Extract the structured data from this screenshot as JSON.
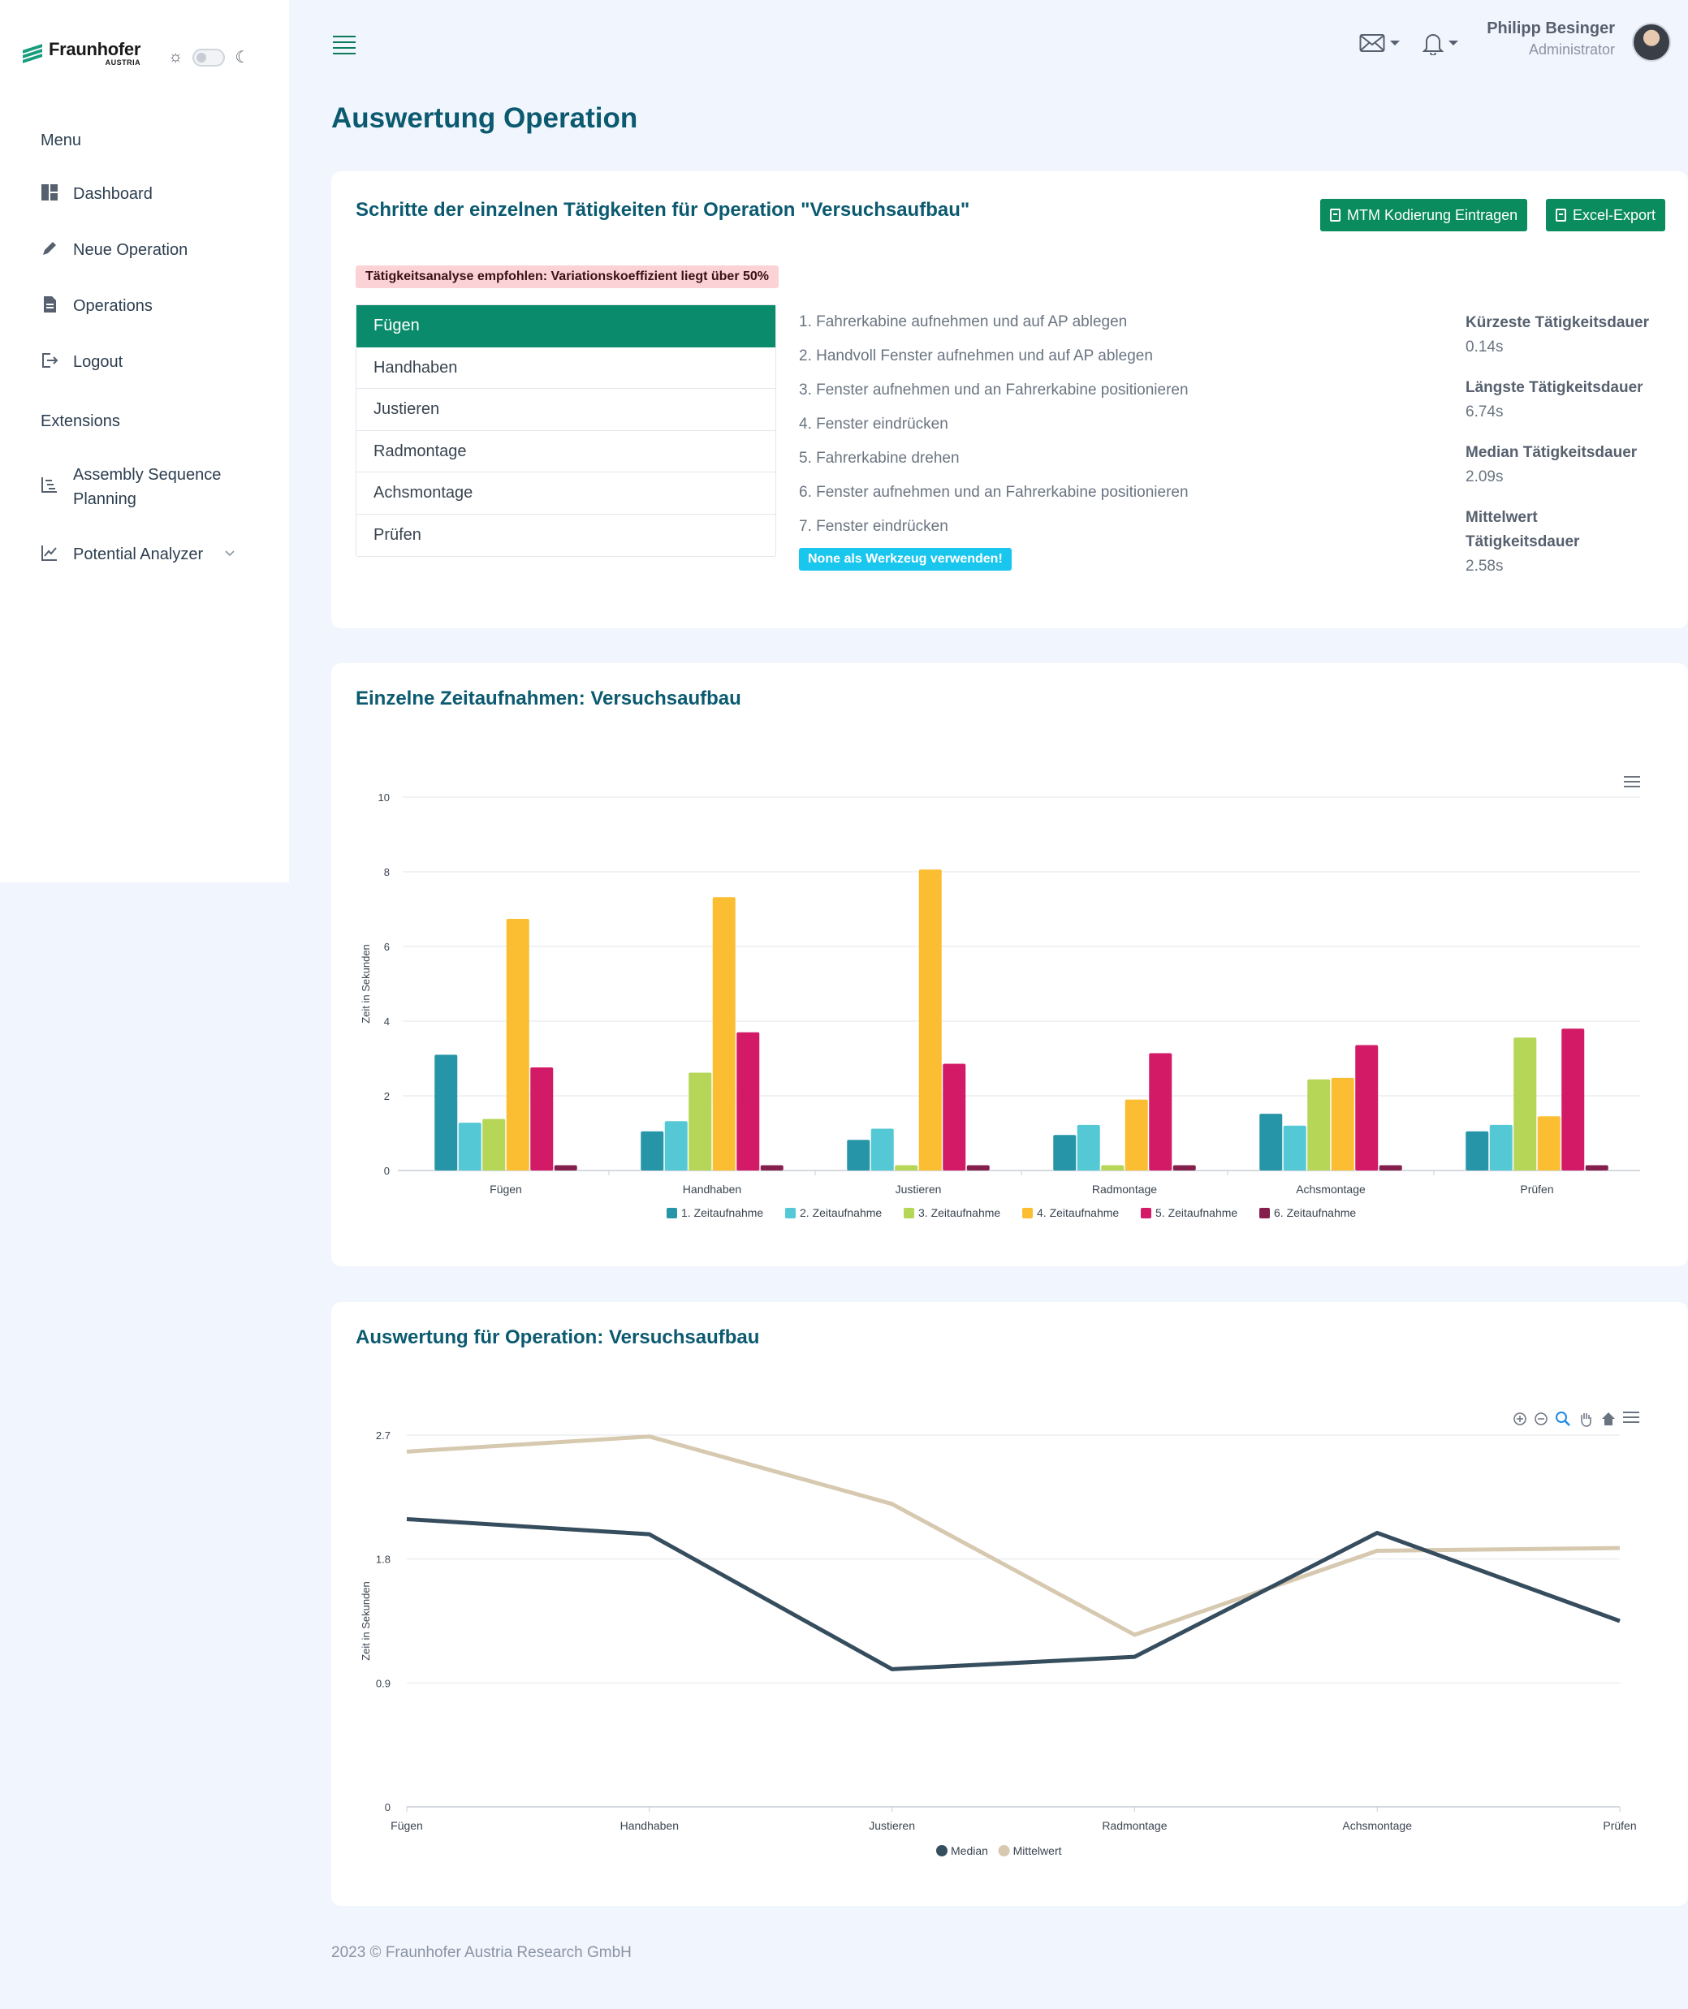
{
  "brand": {
    "name": "Fraunhofer",
    "sub": "AUSTRIA"
  },
  "sidebar": {
    "menu_heading": "Menu",
    "items": [
      {
        "label": "Dashboard",
        "icon": "dashboard-icon"
      },
      {
        "label": "Neue Operation",
        "icon": "pen-icon"
      },
      {
        "label": "Operations",
        "icon": "document-icon"
      },
      {
        "label": "Logout",
        "icon": "logout-icon"
      }
    ],
    "extensions_heading": "Extensions",
    "ext_items": [
      {
        "label": "Assembly Sequence Planning",
        "icon": "sequence-icon"
      },
      {
        "label": "Potential Analyzer",
        "icon": "trend-icon"
      }
    ]
  },
  "user": {
    "name": "Philipp Besinger",
    "role": "Administrator"
  },
  "page_title": "Auswertung Operation",
  "steps_card": {
    "title": "Schritte der einzelnen Tätigkeiten für Operation \"Versuchsaufbau\"",
    "btn_mtm": "MTM Kodierung Eintragen",
    "btn_excel": "Excel-Export",
    "alert": "Tätigkeitsanalyse empfohlen: Variationskoeffizient liegt über 50%",
    "tasks": [
      "Fügen",
      "Handhaben",
      "Justieren",
      "Radmontage",
      "Achsmontage",
      "Prüfen"
    ],
    "steps": [
      "1. Fahrerkabine aufnehmen und auf AP ablegen",
      "2. Handvoll Fenster aufnehmen und auf AP ablegen",
      "3. Fenster aufnehmen und an Fahrerkabine positionieren",
      "4. Fenster eindrücken",
      "5. Fahrerkabine drehen",
      "6. Fenster aufnehmen und an Fahrerkabine positionieren",
      "7. Fenster eindrücken"
    ],
    "tool_badge": "None als Werkzeug verwenden!",
    "stats": [
      {
        "label": "Kürzeste Tätigkeitsdauer",
        "value": "0.14s"
      },
      {
        "label": "Längste Tätigkeitsdauer",
        "value": "6.74s"
      },
      {
        "label": "Median Tätigkeitsdauer",
        "value": "2.09s"
      },
      {
        "label": "Mittelwert Tätigkeitsdauer",
        "value": "2.58s"
      }
    ]
  },
  "bar_card": {
    "title": "Einzelne Zeitaufnahmen: Versuchsaufbau"
  },
  "line_card": {
    "title": "Auswertung für Operation: Versuchsaufbau"
  },
  "footer": "2023 © Fraunhofer Austria Research GmbH",
  "colors": {
    "accent": "#0a8c5e",
    "title": "#0b5a70",
    "badge": "#19c6ee",
    "alert_bg": "#fbd3d6"
  },
  "chart_data": [
    {
      "type": "bar",
      "ylabel": "Zeit in Sekunden",
      "ylim": [
        0,
        10
      ],
      "yticks": [
        0,
        2,
        4,
        6,
        8,
        10
      ],
      "categories": [
        "Fügen",
        "Handhaben",
        "Justieren",
        "Radmontage",
        "Achsmontage",
        "Prüfen"
      ],
      "legend_position": "bottom",
      "series": [
        {
          "name": "1. Zeitaufnahme",
          "color": "#2695a8",
          "values": [
            3.1,
            1.05,
            0.82,
            0.95,
            1.52,
            1.05
          ]
        },
        {
          "name": "2. Zeitaufnahme",
          "color": "#55c8d6",
          "values": [
            1.28,
            1.32,
            1.12,
            1.22,
            1.2,
            1.22
          ]
        },
        {
          "name": "3. Zeitaufnahme",
          "color": "#b5d657",
          "values": [
            1.38,
            2.62,
            0.14,
            0.14,
            2.44,
            3.56
          ]
        },
        {
          "name": "4. Zeitaufnahme",
          "color": "#fbbd31",
          "values": [
            6.74,
            7.32,
            8.06,
            1.9,
            2.48,
            1.45
          ]
        },
        {
          "name": "5. Zeitaufnahme",
          "color": "#d21a66",
          "values": [
            2.76,
            3.7,
            2.86,
            3.14,
            3.36,
            3.8
          ]
        },
        {
          "name": "6. Zeitaufnahme",
          "color": "#85204d",
          "values": [
            0.14,
            0.14,
            0.14,
            0.14,
            0.14,
            0.14
          ]
        }
      ]
    },
    {
      "type": "line",
      "ylabel": "Zeit in Sekunden",
      "ylim": [
        0,
        2.7
      ],
      "yticks": [
        "0",
        "0.9",
        "1.8",
        "2.7"
      ],
      "categories": [
        "Fügen",
        "Handhaben",
        "Justieren",
        "Radmontage",
        "Achsmontage",
        "Prüfen"
      ],
      "legend_position": "bottom",
      "series": [
        {
          "name": "Median",
          "color": "#364d5e",
          "values": [
            2.09,
            1.98,
            1.0,
            1.09,
            1.99,
            1.35
          ]
        },
        {
          "name": "Mittelwert",
          "color": "#d6c9b0",
          "values": [
            2.58,
            2.69,
            2.2,
            1.25,
            1.86,
            1.88
          ]
        }
      ]
    }
  ]
}
